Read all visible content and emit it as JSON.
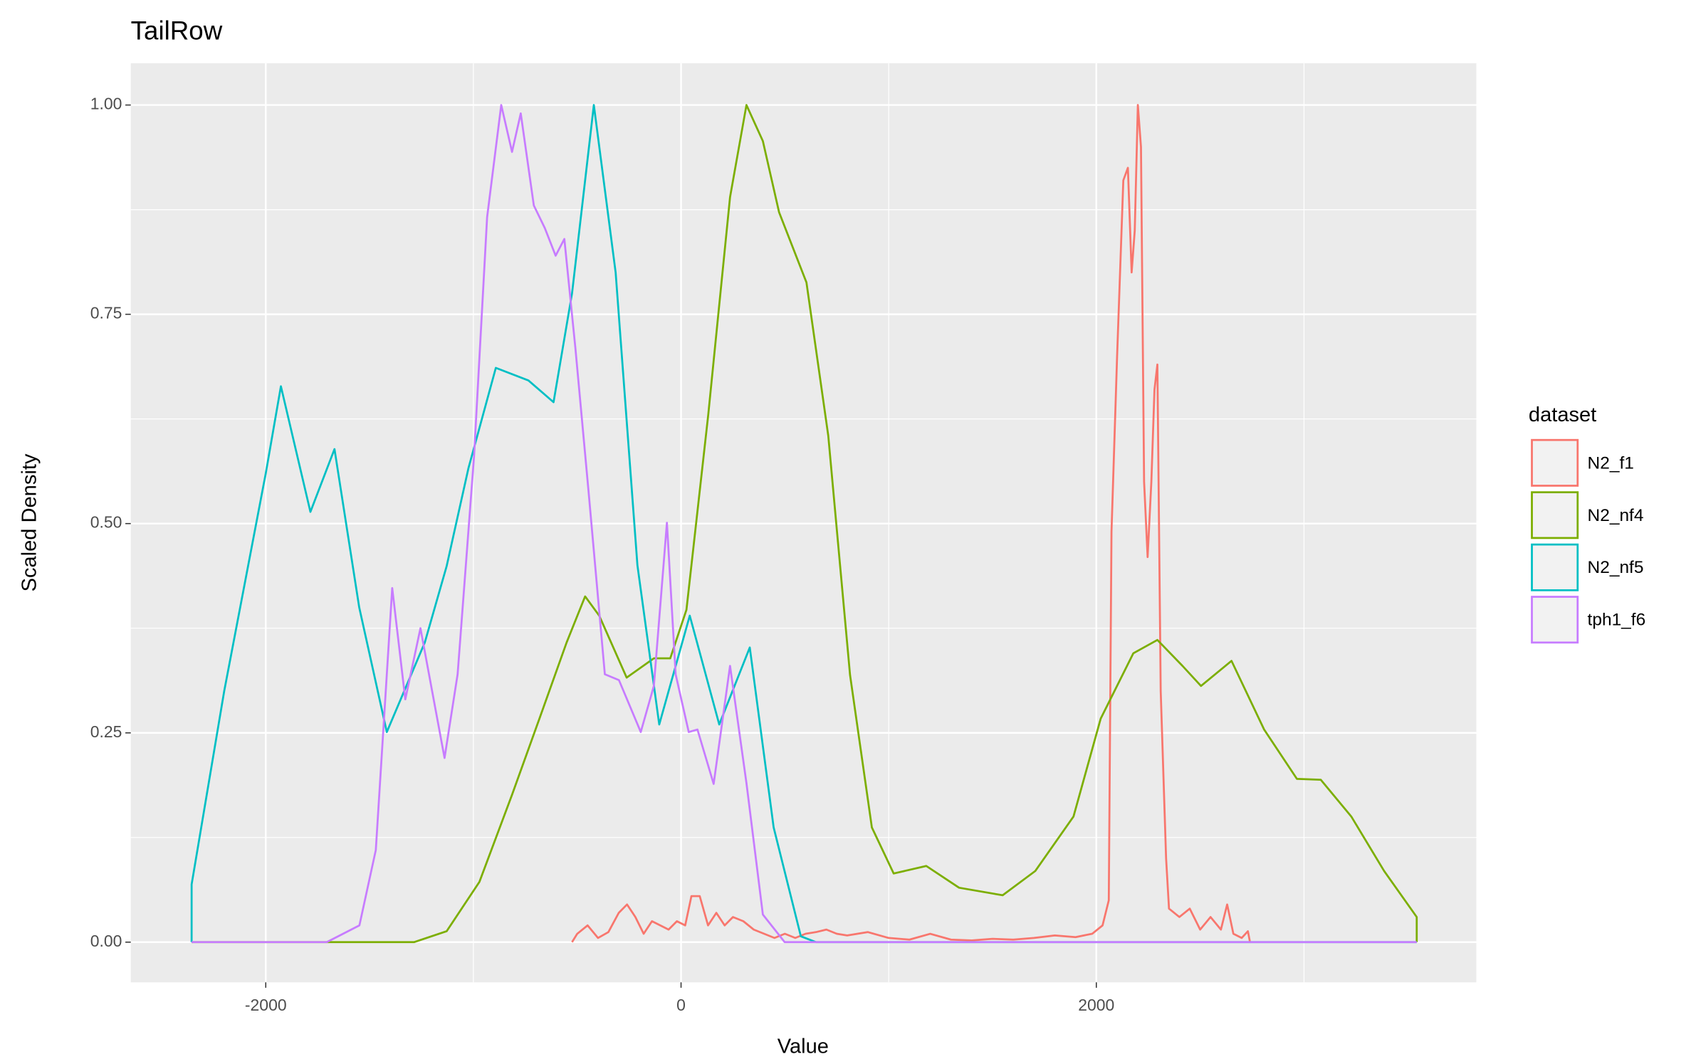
{
  "chart_data": {
    "type": "line",
    "title": "TailRow",
    "x_label": "Value",
    "y_label": "Scaled Density",
    "legend_title": "dataset",
    "legend_position": "right",
    "grid": true,
    "xlim": [
      -2650,
      3830
    ],
    "ylim": [
      -0.048,
      1.05
    ],
    "xticks": [
      -2000,
      0,
      2000
    ],
    "yticks": [
      {
        "value": 0,
        "label": "0.00"
      },
      {
        "value": 0.25,
        "label": "0.25"
      },
      {
        "value": 0.5,
        "label": "0.50"
      },
      {
        "value": 0.75,
        "label": "0.75"
      },
      {
        "value": 1,
        "label": "1.00"
      }
    ],
    "x_minor_ticks": [
      -1000,
      1000,
      3000
    ],
    "y_minor_ticks": [
      0.125,
      0.375,
      0.625,
      0.875
    ],
    "series": [
      {
        "name": "N2_f1",
        "color": "#F8766D",
        "x": [
          -525,
          -500,
          -450,
          -400,
          -350,
          -300,
          -260,
          -220,
          -180,
          -140,
          -100,
          -60,
          -20,
          20,
          50,
          90,
          130,
          170,
          210,
          250,
          300,
          350,
          400,
          450,
          500,
          550,
          600,
          650,
          700,
          750,
          800,
          900,
          1000,
          1100,
          1200,
          1300,
          1400,
          1500,
          1600,
          1700,
          1800,
          1900,
          1980,
          2030,
          2060,
          2073,
          2100,
          2130,
          2152,
          2170,
          2185,
          2200,
          2215,
          2230,
          2247,
          2265,
          2280,
          2294,
          2310,
          2336,
          2350,
          2400,
          2450,
          2500,
          2550,
          2600,
          2630,
          2660,
          2700,
          2730,
          2740
        ],
        "values": [
          0,
          0.01,
          0.02,
          0.005,
          0.012,
          0.035,
          0.045,
          0.03,
          0.01,
          0.025,
          0.02,
          0.015,
          0.025,
          0.02,
          0.055,
          0.055,
          0.02,
          0.035,
          0.02,
          0.03,
          0.025,
          0.015,
          0.01,
          0.005,
          0.01,
          0.005,
          0.01,
          0.012,
          0.015,
          0.01,
          0.008,
          0.012,
          0.005,
          0.003,
          0.01,
          0.003,
          0.002,
          0.004,
          0.003,
          0.005,
          0.008,
          0.006,
          0.01,
          0.02,
          0.05,
          0.49,
          0.7,
          0.91,
          0.925,
          0.8,
          0.85,
          1.0,
          0.95,
          0.55,
          0.46,
          0.55,
          0.66,
          0.69,
          0.3,
          0.1,
          0.04,
          0.03,
          0.04,
          0.015,
          0.03,
          0.015,
          0.045,
          0.01,
          0.005,
          0.013,
          0
        ]
      },
      {
        "name": "N2_nf4",
        "color": "#7CAE00",
        "x": [
          -2357,
          -1286,
          -1129,
          -971,
          -814,
          -682,
          -551,
          -462,
          -394,
          -262,
          -131,
          -52,
          26,
          131,
          236,
          315,
          394,
          472,
          604,
          709,
          814,
          919,
          1024,
          1181,
          1339,
          1549,
          1706,
          1890,
          2021,
          2178,
          2294,
          2415,
          2504,
          2651,
          2808,
          2966,
          3081,
          3228,
          3386,
          3543,
          3543
        ],
        "values": [
          0,
          0,
          0.013,
          0.072,
          0.176,
          0.267,
          0.358,
          0.413,
          0.39,
          0.316,
          0.339,
          0.339,
          0.397,
          0.63,
          0.89,
          1.0,
          0.957,
          0.872,
          0.788,
          0.605,
          0.319,
          0.137,
          0.082,
          0.091,
          0.065,
          0.056,
          0.085,
          0.15,
          0.267,
          0.345,
          0.361,
          0.33,
          0.306,
          0.336,
          0.254,
          0.195,
          0.194,
          0.15,
          0.085,
          0.03,
          0
        ]
      },
      {
        "name": "N2_nf5",
        "color": "#00BFC4",
        "x": [
          -2357,
          -2357,
          -2200,
          -2000,
          -1927,
          -1785,
          -1669,
          -1550,
          -1417,
          -1234,
          -1129,
          -1024,
          -892,
          -735,
          -614,
          -525,
          -420,
          -315,
          -210,
          -105,
          42,
          184,
          331,
          446,
          577,
          650,
          3543
        ],
        "values": [
          0,
          0.069,
          0.3,
          0.56,
          0.664,
          0.514,
          0.589,
          0.4,
          0.251,
          0.358,
          0.449,
          0.566,
          0.686,
          0.671,
          0.645,
          0.775,
          1.0,
          0.8,
          0.45,
          0.26,
          0.39,
          0.26,
          0.352,
          0.137,
          0.007,
          0,
          0
        ]
      },
      {
        "name": "tph1_f6",
        "color": "#C77CFF",
        "x": [
          -2357,
          -1706,
          -1549,
          -1470,
          -1391,
          -1328,
          -1255,
          -1139,
          -1076,
          -997,
          -934,
          -866,
          -814,
          -772,
          -709,
          -656,
          -604,
          -562,
          -509,
          -446,
          -367,
          -299,
          -194,
          -131,
          -68,
          -26,
          37,
          79,
          157,
          236,
          315,
          394,
          499,
          3543
        ],
        "values": [
          0,
          0,
          0.02,
          0.11,
          0.423,
          0.29,
          0.375,
          0.22,
          0.32,
          0.58,
          0.866,
          1.0,
          0.944,
          0.99,
          0.88,
          0.853,
          0.82,
          0.84,
          0.71,
          0.54,
          0.32,
          0.313,
          0.251,
          0.306,
          0.501,
          0.32,
          0.251,
          0.254,
          0.189,
          0.33,
          0.19,
          0.033,
          0,
          0
        ]
      }
    ]
  }
}
